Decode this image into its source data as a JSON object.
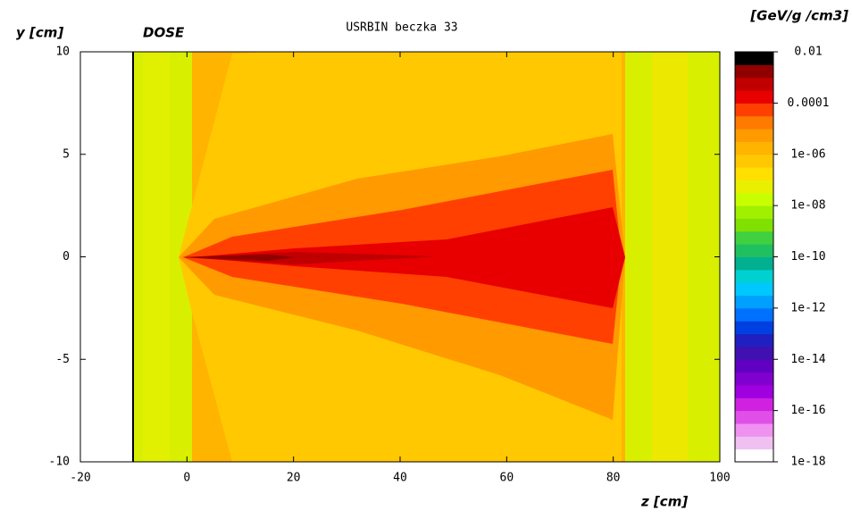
{
  "chart_data": {
    "type": "heatmap",
    "title": "USRBIN beczka 33",
    "quantity": "DOSE",
    "xlabel": "z [cm]",
    "ylabel": "y [cm]",
    "colorbar_label": "[GeV/g /cm3]",
    "xlim": [
      -20,
      100
    ],
    "xticks": [
      -20,
      0,
      20,
      40,
      60,
      80,
      100
    ],
    "ylim": [
      -10,
      10
    ],
    "yticks": [
      -10,
      -5,
      0,
      5,
      10
    ],
    "clim": [
      1e-18,
      0.01
    ],
    "clog": true,
    "cticks": [
      0.01,
      0.0001,
      {
        "value": 1e-06,
        "label": "1e-06"
      },
      {
        "value": 1e-08,
        "label": "1e-08"
      },
      {
        "value": 1e-10,
        "label": "1e-10"
      },
      {
        "value": 1e-12,
        "label": "1e-12"
      },
      {
        "value": 1e-14,
        "label": "1e-14"
      },
      {
        "value": 1e-16,
        "label": "1e-16"
      },
      {
        "value": 1e-18,
        "label": "1e-18"
      }
    ],
    "colors": [
      "#ffffff",
      "#f0c0f0",
      "#f090f0",
      "#e050e8",
      "#d020e0",
      "#a000e0",
      "#8000d0",
      "#6000c0",
      "#4010b0",
      "#2020c0",
      "#0040e0",
      "#0070ff",
      "#00a0ff",
      "#00c8ff",
      "#00d0d0",
      "#00b090",
      "#20c060",
      "#40d040",
      "#80e000",
      "#a0f000",
      "#c8ff00",
      "#e8f000",
      "#ffe000",
      "#ffc800",
      "#ffb400",
      "#ff9a00",
      "#ff7a00",
      "#ff4000",
      "#e80000",
      "#c00000",
      "#900000",
      "#000000"
    ]
  }
}
